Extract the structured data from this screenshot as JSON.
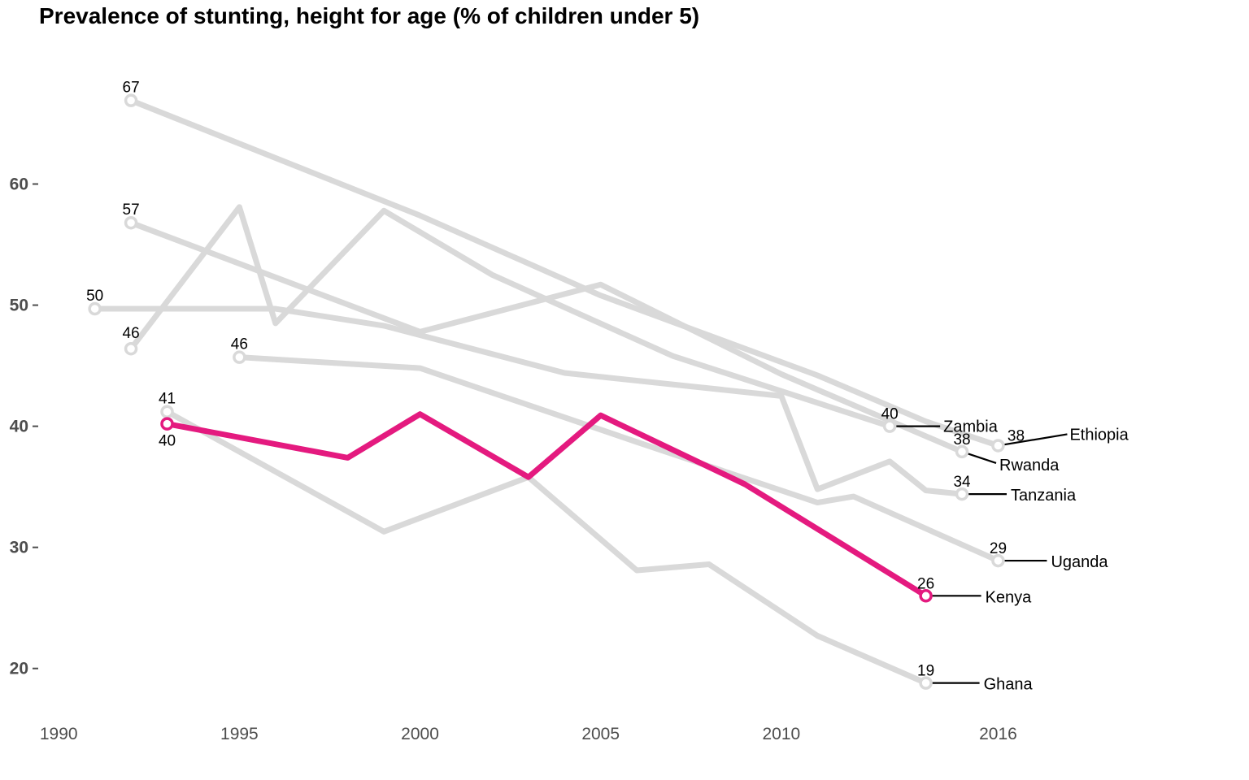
{
  "title": "Prevalence of stunting, height for age (% of children under 5)",
  "colors": {
    "highlight": "#e41a7f",
    "muted": "#d9d9d9",
    "leader": "#000000",
    "axis_text": "#4d4d4d"
  },
  "chart_data": {
    "type": "line",
    "title": "Prevalence of stunting, height for age (% of children under 5)",
    "xlabel": "",
    "ylabel": "",
    "xlim": [
      1989.5,
      2016.8
    ],
    "ylim": [
      17.5,
      70.5
    ],
    "x_ticks": [
      1990,
      1995,
      2000,
      2005,
      2010,
      2016
    ],
    "y_ticks": [
      20,
      30,
      40,
      50,
      60
    ],
    "grid": false,
    "legend": "none",
    "highlight": "Kenya",
    "series": [
      {
        "name": "Ethiopia",
        "values": [
          [
            1992,
            66.9
          ],
          [
            2000,
            57.4
          ],
          [
            2005,
            50.8
          ],
          [
            2011,
            44.2
          ],
          [
            2014,
            40.4
          ],
          [
            2016,
            38.4
          ]
        ],
        "start_label": "67",
        "end_label": "38"
      },
      {
        "name": "Rwanda",
        "values": [
          [
            1992,
            56.8
          ],
          [
            2000,
            47.8
          ],
          [
            2005,
            51.7
          ],
          [
            2010,
            44.3
          ],
          [
            2015,
            37.9
          ]
        ],
        "start_label": "57",
        "end_label": "38"
      },
      {
        "name": "Zambia",
        "values": [
          [
            1992,
            46.4
          ],
          [
            1995,
            58.1
          ],
          [
            1996,
            48.5
          ],
          [
            1999,
            57.8
          ],
          [
            2002,
            52.5
          ],
          [
            2007,
            45.8
          ],
          [
            2013,
            40.0
          ]
        ],
        "start_label": "46",
        "end_label": "40"
      },
      {
        "name": "Tanzania",
        "values": [
          [
            1991,
            49.7
          ],
          [
            1996,
            49.7
          ],
          [
            1999,
            48.3
          ],
          [
            2004,
            44.4
          ],
          [
            2010,
            42.5
          ],
          [
            2011,
            34.8
          ],
          [
            2013,
            37.1
          ],
          [
            2014,
            34.7
          ],
          [
            2015,
            34.4
          ]
        ],
        "start_label": "50",
        "end_label": "34"
      },
      {
        "name": "Uganda",
        "values": [
          [
            1995,
            45.7
          ],
          [
            2000,
            44.8
          ],
          [
            2006,
            38.7
          ],
          [
            2011,
            33.7
          ],
          [
            2012,
            34.2
          ],
          [
            2016,
            28.9
          ]
        ],
        "start_label": "46",
        "end_label": "29"
      },
      {
        "name": "Ghana",
        "values": [
          [
            1993,
            41.2
          ],
          [
            1999,
            31.3
          ],
          [
            2003,
            35.8
          ],
          [
            2006,
            28.1
          ],
          [
            2008,
            28.6
          ],
          [
            2011,
            22.7
          ],
          [
            2014,
            18.8
          ]
        ],
        "start_label": "41",
        "end_label": "19"
      },
      {
        "name": "Kenya",
        "values": [
          [
            1993,
            40.2
          ],
          [
            1998,
            37.4
          ],
          [
            2000,
            41.0
          ],
          [
            2003,
            35.8
          ],
          [
            2005,
            40.9
          ],
          [
            2009,
            35.2
          ],
          [
            2014,
            26.0
          ]
        ],
        "start_label": "40",
        "end_label": "26"
      }
    ]
  }
}
